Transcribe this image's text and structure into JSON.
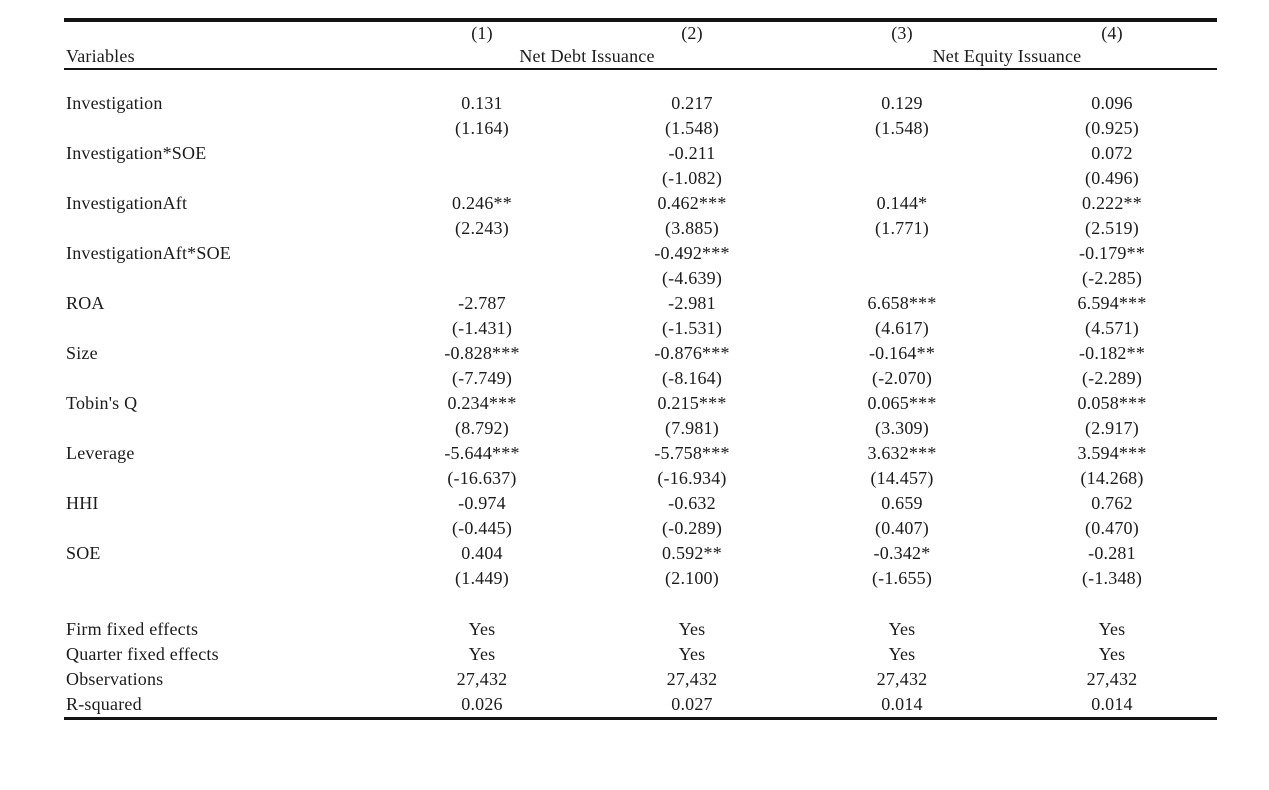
{
  "table": {
    "header": {
      "model_numbers": [
        "(1)",
        "(2)",
        "(3)",
        "(4)"
      ],
      "variables_label": "Variables",
      "groups": [
        {
          "label": "Net Debt Issuance",
          "span": 2
        },
        {
          "label": "Net Equity Issuance",
          "span": 2
        }
      ]
    },
    "rows": [
      {
        "label": "Investigation",
        "coefs": [
          "0.131",
          "0.217",
          "0.129",
          "0.096"
        ],
        "tstats": [
          "(1.164)",
          "(1.548)",
          "(1.548)",
          "(0.925)"
        ]
      },
      {
        "label": "Investigation*SOE",
        "coefs": [
          "",
          "-0.211",
          "",
          "0.072"
        ],
        "tstats": [
          "",
          "(-1.082)",
          "",
          "(0.496)"
        ]
      },
      {
        "label": "InvestigationAft",
        "coefs": [
          "0.246**",
          "0.462***",
          "0.144*",
          "0.222**"
        ],
        "tstats": [
          "(2.243)",
          "(3.885)",
          "(1.771)",
          "(2.519)"
        ]
      },
      {
        "label": "InvestigationAft*SOE",
        "coefs": [
          "",
          "-0.492***",
          "",
          "-0.179**"
        ],
        "tstats": [
          "",
          "(-4.639)",
          "",
          "(-2.285)"
        ]
      },
      {
        "label": "ROA",
        "coefs": [
          "-2.787",
          "-2.981",
          "6.658***",
          "6.594***"
        ],
        "tstats": [
          "(-1.431)",
          "(-1.531)",
          "(4.617)",
          "(4.571)"
        ]
      },
      {
        "label": "Size",
        "coefs": [
          "-0.828***",
          "-0.876***",
          "-0.164**",
          "-0.182**"
        ],
        "tstats": [
          "(-7.749)",
          "(-8.164)",
          "(-2.070)",
          "(-2.289)"
        ]
      },
      {
        "label": "Tobin's Q",
        "coefs": [
          "0.234***",
          "0.215***",
          "0.065***",
          "0.058***"
        ],
        "tstats": [
          "(8.792)",
          "(7.981)",
          "(3.309)",
          "(2.917)"
        ]
      },
      {
        "label": "Leverage",
        "coefs": [
          "-5.644***",
          "-5.758***",
          "3.632***",
          "3.594***"
        ],
        "tstats": [
          "(-16.637)",
          "(-16.934)",
          "(14.457)",
          "(14.268)"
        ]
      },
      {
        "label": "HHI",
        "coefs": [
          "-0.974",
          "-0.632",
          "0.659",
          "0.762"
        ],
        "tstats": [
          "(-0.445)",
          "(-0.289)",
          "(0.407)",
          "(0.470)"
        ]
      },
      {
        "label": "SOE",
        "coefs": [
          "0.404",
          "0.592**",
          "-0.342*",
          "-0.281"
        ],
        "tstats": [
          "(1.449)",
          "(2.100)",
          "(-1.655)",
          "(-1.348)"
        ]
      }
    ],
    "summary_rows": [
      {
        "label": "Firm fixed effects",
        "values": [
          "Yes",
          "Yes",
          "Yes",
          "Yes"
        ]
      },
      {
        "label": "Quarter fixed effects",
        "values": [
          "Yes",
          "Yes",
          "Yes",
          "Yes"
        ]
      },
      {
        "label": "Observations",
        "values": [
          "27,432",
          "27,432",
          "27,432",
          "27,432"
        ]
      },
      {
        "label": "R-squared",
        "values": [
          "0.026",
          "0.027",
          "0.014",
          "0.014"
        ]
      }
    ]
  }
}
